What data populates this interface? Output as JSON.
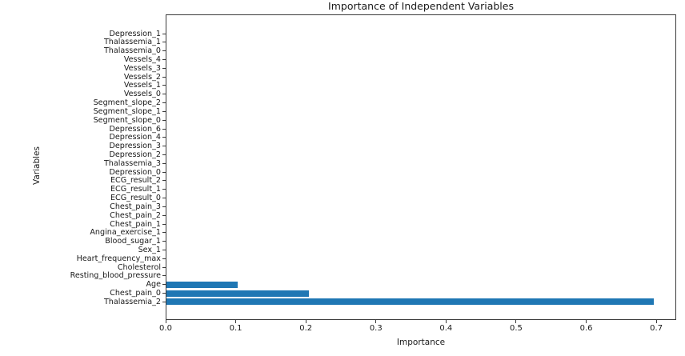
{
  "chart_data": {
    "type": "bar",
    "orientation": "horizontal",
    "title": "Importance of Independent Variables",
    "xlabel": "Importance",
    "ylabel": "Variables",
    "bar_color": "#1f77b4",
    "xlim": [
      0,
      0.7284
    ],
    "x_ticks": [
      0.0,
      0.1,
      0.2,
      0.3,
      0.4,
      0.5,
      0.6,
      0.7
    ],
    "grid": false,
    "legend": false,
    "categories_order": "top-to-bottom",
    "categories": [
      "Depression_1",
      "Thalassemia_1",
      "Thalassemia_0",
      "Vessels_4",
      "Vessels_3",
      "Vessels_2",
      "Vessels_1",
      "Vessels_0",
      "Segment_slope_2",
      "Segment_slope_1",
      "Segment_slope_0",
      "Depression_6",
      "Depression_4",
      "Depression_3",
      "Depression_2",
      "Thalassemia_3",
      "Depression_0",
      "ECG_result_2",
      "ECG_result_1",
      "ECG_result_0",
      "Chest_pain_3",
      "Chest_pain_2",
      "Chest_pain_1",
      "Angina_exercise_1",
      "Blood_sugar_1",
      "Sex_1",
      "Heart_frequency_max",
      "Cholesterol",
      "Resting_blood_pressure",
      "Age",
      "Chest_pain_0",
      "Thalassemia_2"
    ],
    "values": [
      0,
      0,
      0,
      0,
      0,
      0,
      0,
      0,
      0,
      0,
      0,
      0,
      0,
      0,
      0,
      0,
      0,
      0,
      0,
      0,
      0,
      0,
      0,
      0,
      0,
      0,
      0,
      0,
      0,
      0.102,
      0.203,
      0.695
    ]
  }
}
